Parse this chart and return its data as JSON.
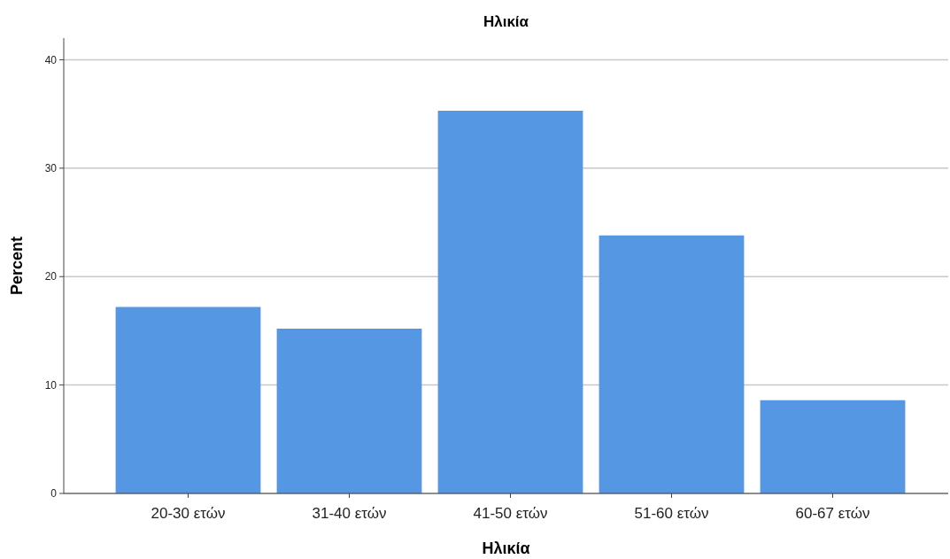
{
  "chart_data": {
    "type": "bar",
    "title": "Ηλικία",
    "xlabel": "Ηλικία",
    "ylabel": "Percent",
    "categories": [
      "20-30 ετών",
      "31-40 ετών",
      "41-50 ετών",
      "51-60 ετών",
      "60-67 ετών"
    ],
    "values": [
      17.2,
      15.2,
      35.3,
      23.8,
      8.6
    ],
    "color": "#5597e3",
    "ylim": [
      0,
      42
    ],
    "yticks": [
      0,
      10,
      20,
      30,
      40
    ],
    "grid": "y"
  }
}
